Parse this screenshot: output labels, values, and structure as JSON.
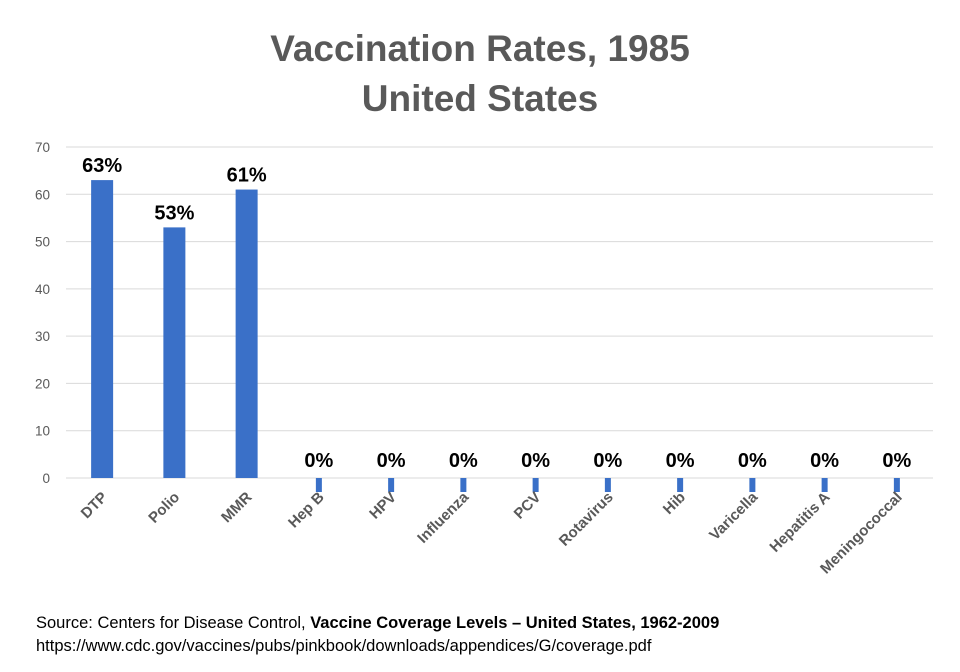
{
  "chart_data": {
    "type": "bar",
    "title": "Vaccination Rates, 1985",
    "subtitle": "United States",
    "categories": [
      "DTP",
      "Polio",
      "MMR",
      "Hep B",
      "HPV",
      "Influenza",
      "PCV",
      "Rotavirus",
      "Hib",
      "Varicella",
      "Hepatitis A",
      "Meningococcal"
    ],
    "values": [
      63,
      53,
      61,
      0,
      0,
      0,
      0,
      0,
      0,
      0,
      0,
      0
    ],
    "data_labels": [
      "63%",
      "53%",
      "61%",
      "0%",
      "0%",
      "0%",
      "0%",
      "0%",
      "0%",
      "0%",
      "0%",
      "0%"
    ],
    "ylim": [
      0,
      70
    ],
    "yticks": [
      0,
      10,
      20,
      30,
      40,
      50,
      60,
      70
    ],
    "xlabel": "",
    "ylabel": "",
    "grid": true,
    "legend": "none",
    "bar_color": "#3a70c8",
    "gridline_color": "#d9d9d9",
    "tick_label_color": "#595959"
  },
  "source": {
    "prefix": "Source: Centers for Disease Control, ",
    "report": "Vaccine Coverage Levels – United States, 1962-2009",
    "url": "https://www.cdc.gov/vaccines/pubs/pinkbook/downloads/appendices/G/coverage.pdf"
  }
}
